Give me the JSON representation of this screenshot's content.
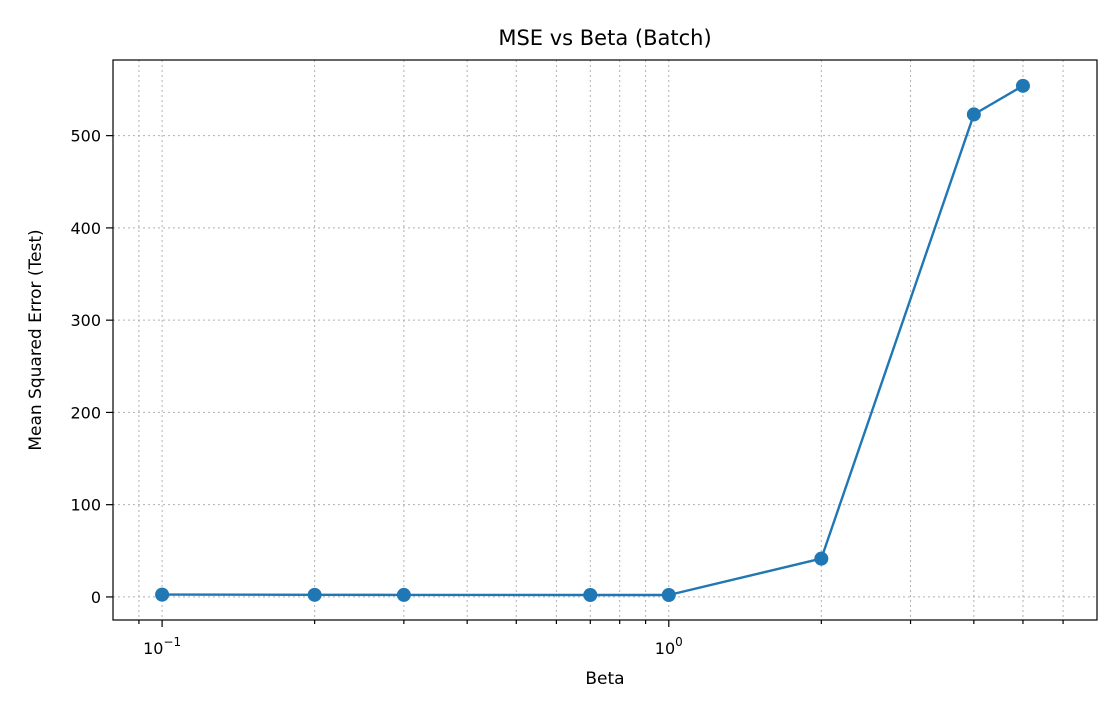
{
  "chart_data": {
    "type": "line",
    "title": "MSE vs Beta (Batch)",
    "xlabel": "Beta",
    "ylabel": "Mean Squared Error (Test)",
    "xscale": "log",
    "xlim": [
      0.08,
      7.0
    ],
    "ylim": [
      -25,
      582
    ],
    "grid": true,
    "grid_which": "both",
    "x_major_ticks": [
      0.1,
      1
    ],
    "x_major_tick_labels": [
      {
        "base": "10",
        "exp": "−1"
      },
      {
        "base": "10",
        "exp": "0"
      }
    ],
    "x_minor_ticks": [
      0.09,
      0.2,
      0.3,
      0.4,
      0.5,
      0.6,
      0.7,
      0.8,
      0.9,
      2,
      3,
      4,
      5,
      6
    ],
    "y_ticks": [
      0,
      100,
      200,
      300,
      400,
      500
    ],
    "y_tick_labels": [
      "0",
      "100",
      "200",
      "300",
      "400",
      "500"
    ],
    "series": [
      {
        "color": "#1f77b4",
        "marker": "circle",
        "x": [
          0.1,
          0.2,
          0.3,
          0.7,
          1.0,
          2.0,
          4.0,
          5.0
        ],
        "y": [
          2.5,
          2.3,
          2.2,
          2.1,
          2.1,
          41.5,
          523,
          554
        ]
      }
    ]
  }
}
